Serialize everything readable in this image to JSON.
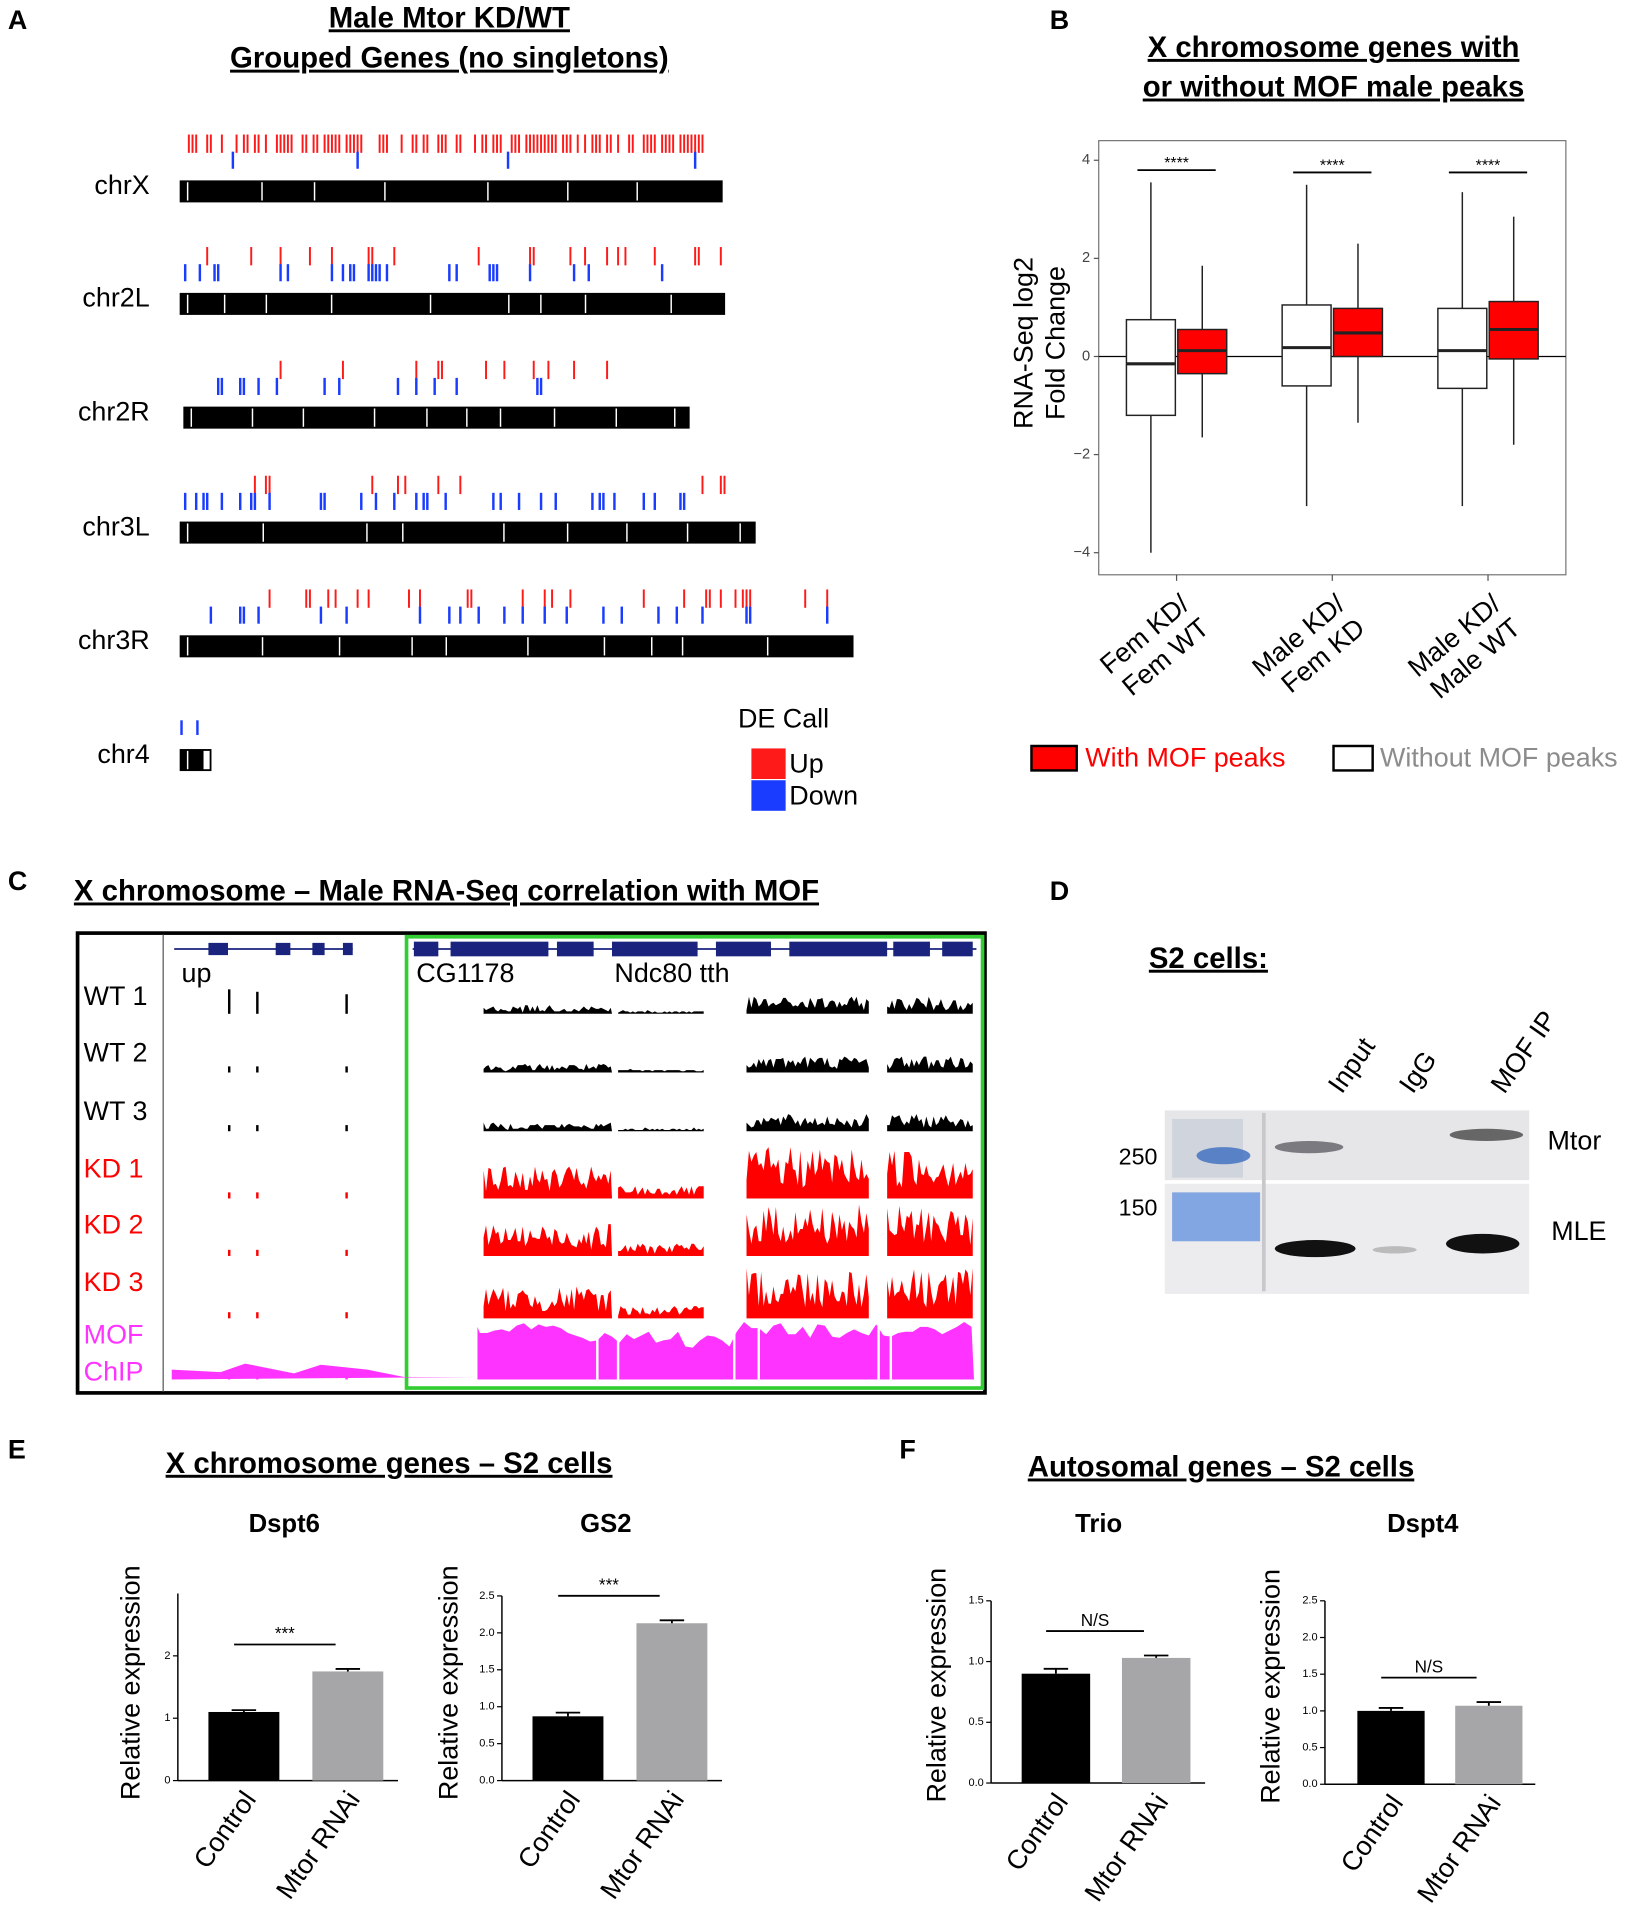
{
  "panel_labels": [
    "A",
    "B",
    "C",
    "D",
    "E",
    "F"
  ],
  "panel_a": {
    "title": [
      "Male Mtor KD/WT",
      "Grouped Genes (no singletons)"
    ],
    "chromosomes": [
      "chrX",
      "chr2L",
      "chr2R",
      "chr3L",
      "chr3R",
      "chr4"
    ],
    "legend_title": "DE Call",
    "legend": [
      {
        "label": "Up",
        "color": "#ff1a1a"
      },
      {
        "label": "Down",
        "color": "#1a3cff"
      }
    ]
  },
  "panel_c": {
    "title": "X chromosome – Male RNA-Seq correlation with MOF",
    "genes": [
      "up",
      "CG1178",
      "Ndc80 tth"
    ],
    "tracks": [
      {
        "label": "WT 1",
        "color": "#000000"
      },
      {
        "label": "WT 2",
        "color": "#000000"
      },
      {
        "label": "WT 3",
        "color": "#000000"
      },
      {
        "label": "KD 1",
        "color": "#ff0000"
      },
      {
        "label": "KD 2",
        "color": "#ff0000"
      },
      {
        "label": "KD 3",
        "color": "#ff0000"
      },
      {
        "label": "MOF\nChIP",
        "color": "#ff33ff"
      }
    ]
  },
  "panel_d": {
    "title": "S2 cells:",
    "lanes": [
      "Input",
      "IgG",
      "MOF IP"
    ],
    "proteins": [
      "Mtor",
      "MLE"
    ],
    "markers": [
      250,
      150
    ]
  },
  "panel_e": {
    "title": "X chromosome genes – S2 cells"
  },
  "panel_f": {
    "title": "Autosomal genes – S2 cells"
  },
  "chart_data": [
    {
      "type": "box",
      "title": "X chromosome genes with\nor without MOF male peaks",
      "ylabel": "RNA-Seq log2\nFold Change",
      "categories": [
        "Fem KD/\nFem WT",
        "Male KD/\nFem KD",
        "Male KD/\nMale WT"
      ],
      "series": [
        {
          "name": "With MOF peaks",
          "color": "#ff0000",
          "text_color": "#ff0000",
          "values": [
            {
              "whislo": -1.65,
              "q1": -0.35,
              "med": 0.12,
              "q3": 0.55,
              "whishi": 1.85
            },
            {
              "whislo": -1.35,
              "q1": 0.0,
              "med": 0.48,
              "q3": 0.98,
              "whishi": 2.3
            },
            {
              "whislo": -1.8,
              "q1": -0.05,
              "med": 0.55,
              "q3": 1.12,
              "whishi": 2.85
            }
          ]
        },
        {
          "name": "Without MOF peaks",
          "color": "#ffffff",
          "text_color": "#8c8c8c",
          "values": [
            {
              "whislo": -4.0,
              "q1": -1.2,
              "med": -0.15,
              "q3": 0.75,
              "whishi": 3.55
            },
            {
              "whislo": -3.05,
              "q1": -0.6,
              "med": 0.18,
              "q3": 1.05,
              "whishi": 3.5
            },
            {
              "whislo": -3.05,
              "q1": -0.65,
              "med": 0.12,
              "q3": 0.98,
              "whishi": 3.35
            }
          ]
        }
      ],
      "annotations": [
        "****",
        "****",
        "****"
      ],
      "ylim": [
        -4.45,
        4.4
      ],
      "yticks": [
        {
          "value": -4,
          "label": "−4"
        },
        {
          "value": -2,
          "label": "−2"
        },
        0,
        2,
        4
      ]
    },
    {
      "type": "bar",
      "title": "Dspt6",
      "ylabel": "Relative expression",
      "categories": [
        "Control",
        "Mtor RNAi"
      ],
      "values": [
        1.1,
        1.75
      ],
      "errors": [
        0.03,
        0.04
      ],
      "colors": [
        "#000000",
        "#a6a6a8"
      ],
      "annotation": "***",
      "ylim": [
        0,
        3
      ],
      "yticks": [
        0,
        1,
        2
      ]
    },
    {
      "type": "bar",
      "title": "GS2",
      "ylabel": "Relative expression",
      "categories": [
        "Control",
        "Mtor RNAi"
      ],
      "values": [
        0.87,
        2.13
      ],
      "errors": [
        0.05,
        0.04
      ],
      "colors": [
        "#000000",
        "#a6a6a8"
      ],
      "annotation": "***",
      "ylim": [
        0,
        2.5
      ],
      "yticks": [
        {
          "value": 0,
          "label": "0.0"
        },
        0.5,
        {
          "value": 1,
          "label": "1.0"
        },
        1.5,
        {
          "value": 2,
          "label": "2.0"
        },
        2.5
      ]
    },
    {
      "type": "bar",
      "title": "Trio",
      "ylabel": "Relative expression",
      "categories": [
        "Control",
        "Mtor RNAi"
      ],
      "values": [
        0.9,
        1.03
      ],
      "errors": [
        0.04,
        0.02
      ],
      "colors": [
        "#000000",
        "#a6a6a8"
      ],
      "annotation": "N/S",
      "ylim": [
        0,
        1.5
      ],
      "yticks": [
        {
          "value": 0,
          "label": "0.0"
        },
        0.5,
        {
          "value": 1,
          "label": "1.0"
        },
        1.5
      ]
    },
    {
      "type": "bar",
      "title": "Dspt4",
      "ylabel": "Relative expression",
      "categories": [
        "Control",
        "Mtor RNAi"
      ],
      "values": [
        1.0,
        1.07
      ],
      "errors": [
        0.04,
        0.05
      ],
      "colors": [
        "#000000",
        "#a6a6a8"
      ],
      "annotation": "N/S",
      "ylim": [
        0,
        2.5
      ],
      "yticks": [
        {
          "value": 0,
          "label": "0.0"
        },
        0.5,
        {
          "value": 1,
          "label": "1.0"
        },
        1.5,
        {
          "value": 2,
          "label": "2.0"
        },
        2.5
      ]
    }
  ]
}
